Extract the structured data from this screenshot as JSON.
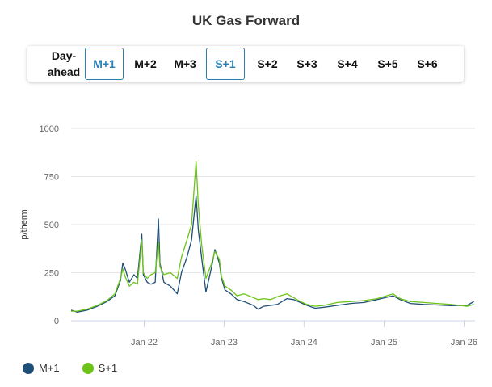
{
  "title": "UK Gas Forward",
  "tabs": [
    {
      "label": "Day-ahead",
      "active": false
    },
    {
      "label": "M+1",
      "active": true
    },
    {
      "label": "M+2",
      "active": false
    },
    {
      "label": "M+3",
      "active": false
    },
    {
      "label": "S+1",
      "active": true
    },
    {
      "label": "S+2",
      "active": false
    },
    {
      "label": "S+3",
      "active": false
    },
    {
      "label": "S+4",
      "active": false
    },
    {
      "label": "S+5",
      "active": false
    },
    {
      "label": "S+6",
      "active": false
    }
  ],
  "colors": {
    "accent": "#2b7fb1",
    "m1": "#1f4e79",
    "s1": "#6cc417"
  },
  "chart_data": {
    "type": "line",
    "title": "UK Gas Forward",
    "ylabel": "p/therm",
    "xlabel": "",
    "ylim": [
      0,
      1000
    ],
    "xlim": [
      "2021-02-01",
      "2026-02-20"
    ],
    "yticks": [
      0,
      250,
      500,
      750,
      1000
    ],
    "xticks": [
      {
        "label": "Jan 22",
        "date": "2022-01-01"
      },
      {
        "label": "Jan 23",
        "date": "2023-01-01"
      },
      {
        "label": "Jan 24",
        "date": "2024-01-01"
      },
      {
        "label": "Jan 25",
        "date": "2025-01-01"
      },
      {
        "label": "Jan 26",
        "date": "2026-01-01"
      }
    ],
    "grid": true,
    "legend_position": "bottom-left",
    "series": [
      {
        "name": "M+1",
        "color": "#1f4e79",
        "points": [
          [
            "2021-02-01",
            55
          ],
          [
            "2021-03-01",
            45
          ],
          [
            "2021-04-15",
            55
          ],
          [
            "2021-06-01",
            75
          ],
          [
            "2021-07-15",
            100
          ],
          [
            "2021-08-20",
            130
          ],
          [
            "2021-09-15",
            210
          ],
          [
            "2021-09-25",
            300
          ],
          [
            "2021-10-06",
            270
          ],
          [
            "2021-10-25",
            200
          ],
          [
            "2021-11-15",
            240
          ],
          [
            "2021-12-01",
            220
          ],
          [
            "2021-12-21",
            450
          ],
          [
            "2021-12-28",
            240
          ],
          [
            "2022-01-15",
            200
          ],
          [
            "2022-02-01",
            190
          ],
          [
            "2022-02-20",
            200
          ],
          [
            "2022-03-07",
            530
          ],
          [
            "2022-03-14",
            300
          ],
          [
            "2022-04-01",
            200
          ],
          [
            "2022-05-01",
            180
          ],
          [
            "2022-06-01",
            140
          ],
          [
            "2022-06-20",
            250
          ],
          [
            "2022-07-15",
            330
          ],
          [
            "2022-08-05",
            420
          ],
          [
            "2022-08-26",
            650
          ],
          [
            "2022-09-05",
            470
          ],
          [
            "2022-09-20",
            330
          ],
          [
            "2022-10-10",
            150
          ],
          [
            "2022-11-05",
            280
          ],
          [
            "2022-11-20",
            370
          ],
          [
            "2022-12-10",
            300
          ],
          [
            "2022-12-20",
            220
          ],
          [
            "2023-01-05",
            160
          ],
          [
            "2023-02-01",
            140
          ],
          [
            "2023-03-01",
            110
          ],
          [
            "2023-04-01",
            100
          ],
          [
            "2023-05-15",
            80
          ],
          [
            "2023-06-05",
            60
          ],
          [
            "2023-07-01",
            75
          ],
          [
            "2023-08-01",
            80
          ],
          [
            "2023-09-01",
            85
          ],
          [
            "2023-10-15",
            115
          ],
          [
            "2023-11-15",
            110
          ],
          [
            "2023-12-15",
            95
          ],
          [
            "2024-01-15",
            80
          ],
          [
            "2024-02-20",
            65
          ],
          [
            "2024-04-01",
            70
          ],
          [
            "2024-06-01",
            80
          ],
          [
            "2024-08-01",
            90
          ],
          [
            "2024-10-01",
            95
          ],
          [
            "2024-12-01",
            110
          ],
          [
            "2025-02-10",
            130
          ],
          [
            "2025-03-15",
            110
          ],
          [
            "2025-05-01",
            90
          ],
          [
            "2025-07-01",
            85
          ],
          [
            "2025-09-01",
            82
          ],
          [
            "2025-11-01",
            78
          ],
          [
            "2026-01-15",
            80
          ],
          [
            "2026-02-15",
            100
          ]
        ]
      },
      {
        "name": "S+1",
        "color": "#6cc417",
        "points": [
          [
            "2021-02-01",
            50
          ],
          [
            "2021-03-01",
            50
          ],
          [
            "2021-04-15",
            60
          ],
          [
            "2021-06-01",
            80
          ],
          [
            "2021-07-15",
            105
          ],
          [
            "2021-08-20",
            140
          ],
          [
            "2021-09-15",
            220
          ],
          [
            "2021-09-25",
            270
          ],
          [
            "2021-10-06",
            230
          ],
          [
            "2021-10-25",
            180
          ],
          [
            "2021-11-15",
            200
          ],
          [
            "2021-12-01",
            190
          ],
          [
            "2021-12-21",
            420
          ],
          [
            "2021-12-28",
            250
          ],
          [
            "2022-01-15",
            220
          ],
          [
            "2022-02-01",
            240
          ],
          [
            "2022-02-20",
            250
          ],
          [
            "2022-03-07",
            410
          ],
          [
            "2022-03-14",
            280
          ],
          [
            "2022-04-01",
            240
          ],
          [
            "2022-05-01",
            250
          ],
          [
            "2022-06-01",
            220
          ],
          [
            "2022-06-20",
            330
          ],
          [
            "2022-07-15",
            420
          ],
          [
            "2022-08-05",
            500
          ],
          [
            "2022-08-26",
            830
          ],
          [
            "2022-09-05",
            600
          ],
          [
            "2022-09-20",
            400
          ],
          [
            "2022-10-10",
            220
          ],
          [
            "2022-11-05",
            300
          ],
          [
            "2022-11-20",
            360
          ],
          [
            "2022-12-10",
            320
          ],
          [
            "2022-12-20",
            230
          ],
          [
            "2023-01-05",
            180
          ],
          [
            "2023-02-01",
            160
          ],
          [
            "2023-03-01",
            130
          ],
          [
            "2023-04-01",
            140
          ],
          [
            "2023-05-15",
            120
          ],
          [
            "2023-06-05",
            110
          ],
          [
            "2023-07-01",
            115
          ],
          [
            "2023-08-01",
            110
          ],
          [
            "2023-09-01",
            125
          ],
          [
            "2023-10-15",
            140
          ],
          [
            "2023-11-15",
            120
          ],
          [
            "2023-12-15",
            100
          ],
          [
            "2024-01-15",
            85
          ],
          [
            "2024-02-20",
            75
          ],
          [
            "2024-04-01",
            80
          ],
          [
            "2024-06-01",
            95
          ],
          [
            "2024-08-01",
            100
          ],
          [
            "2024-10-01",
            105
          ],
          [
            "2024-12-01",
            115
          ],
          [
            "2025-02-10",
            140
          ],
          [
            "2025-03-15",
            115
          ],
          [
            "2025-05-01",
            100
          ],
          [
            "2025-07-01",
            95
          ],
          [
            "2025-09-01",
            90
          ],
          [
            "2025-11-01",
            85
          ],
          [
            "2026-01-15",
            75
          ],
          [
            "2026-02-15",
            85
          ]
        ]
      }
    ]
  }
}
